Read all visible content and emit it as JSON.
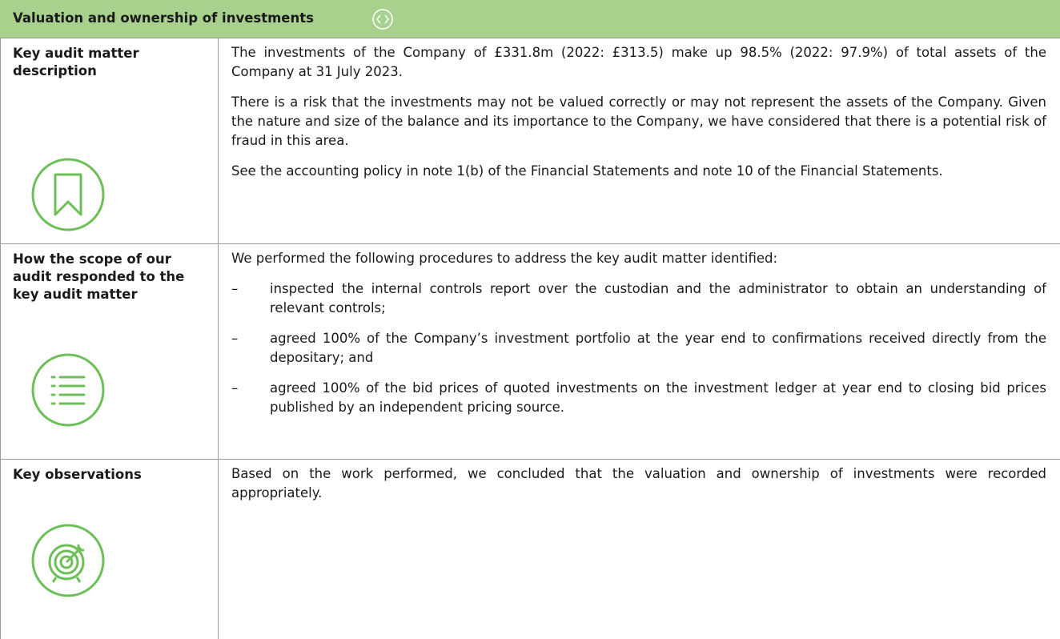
{
  "header": {
    "title": "Valuation and ownership of investments"
  },
  "rows": [
    {
      "label": "Key audit matter description",
      "paragraphs": [
        "The investments of the Company of £331.8m (2022: £313.5) make up 98.5% (2022: 97.9%) of total assets of the Company at 31 July 2023.",
        "There is a risk that the investments may not be valued correctly or may not represent the assets of the Company. Given the nature and size of the balance and its importance to the Company, we have considered that there is a potential risk of fraud in this area.",
        "See the accounting policy in note 1(b) of the Financial Statements and note 10 of the Financial Statements."
      ]
    },
    {
      "label": "How the scope of our audit responded to the key audit matter",
      "paragraphs": [
        "We performed the following procedures to address the key audit matter identified:"
      ],
      "bullet": "–",
      "items": [
        "inspected the internal controls report over the custodian and the administrator to obtain an understanding of relevant controls;",
        "agreed 100% of the Company’s investment portfolio at the year end to confirmations received directly from the depositary; and",
        "agreed 100% of the bid prices of quoted investments on the investment ledger at year end to closing bid prices published by an independent pricing source."
      ]
    },
    {
      "label": "Key observations",
      "paragraphs": [
        "Based on the work performed, we concluded that the valuation and ownership of investments were recorded appropriately."
      ]
    }
  ]
}
